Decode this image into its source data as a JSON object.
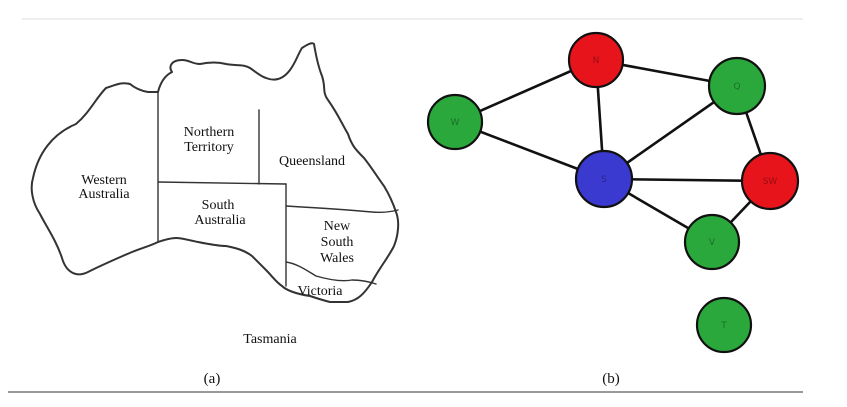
{
  "map": {
    "regions": {
      "wa_line1": "Western",
      "wa_line2": "Australia",
      "nt_line1": "Northern",
      "nt_line2": "Territory",
      "qld": "Queensland",
      "sa_line1": "South",
      "sa_line2": "Australia",
      "nsw_line1": "New",
      "nsw_line2": "South",
      "nsw_line3": "Wales",
      "vic": "Victoria",
      "tas": "Tasmania"
    },
    "caption": "(a)"
  },
  "graph": {
    "caption": "(b)",
    "colors": {
      "red": "#e8141c",
      "green": "#2aa83c",
      "blue": "#3a3ad0"
    },
    "nodes": [
      {
        "id": "WA",
        "label": "W",
        "color": "green"
      },
      {
        "id": "NT",
        "label": "N",
        "color": "red"
      },
      {
        "id": "SA",
        "label": "S",
        "color": "blue"
      },
      {
        "id": "Q",
        "label": "Q",
        "color": "green"
      },
      {
        "id": "NSW",
        "label": "SW",
        "color": "red"
      },
      {
        "id": "V",
        "label": "V",
        "color": "green"
      },
      {
        "id": "T",
        "label": "T",
        "color": "green"
      }
    ],
    "edges": [
      [
        "WA",
        "NT"
      ],
      [
        "WA",
        "SA"
      ],
      [
        "NT",
        "SA"
      ],
      [
        "NT",
        "Q"
      ],
      [
        "SA",
        "Q"
      ],
      [
        "SA",
        "NSW"
      ],
      [
        "SA",
        "V"
      ],
      [
        "Q",
        "NSW"
      ],
      [
        "NSW",
        "V"
      ]
    ]
  }
}
